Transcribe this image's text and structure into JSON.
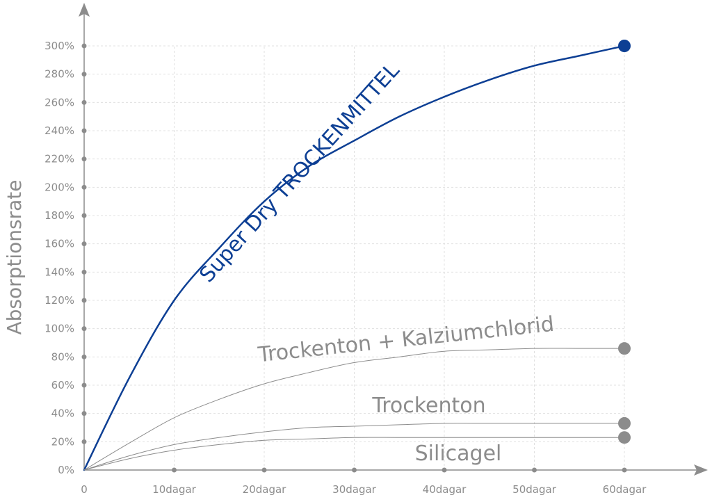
{
  "chart_data": {
    "type": "line",
    "title": "",
    "xlabel": "",
    "ylabel": "Absorptionsrate",
    "x_ticks": [
      "0",
      "10dagar",
      "20dagar",
      "30dagar",
      "40dagar",
      "50dagar",
      "60dagar"
    ],
    "y_ticks": [
      "0%",
      "20%",
      "40%",
      "60%",
      "80%",
      "100%",
      "120%",
      "140%",
      "160%",
      "180%",
      "200%",
      "220%",
      "240%",
      "260%",
      "280%",
      "300%"
    ],
    "xlim": [
      0,
      60
    ],
    "ylim": [
      0,
      300
    ],
    "grid": true,
    "series": [
      {
        "name": "Super Dry TROCKENMITTEL",
        "color": "#0d3f94",
        "emphasis": true,
        "x": [
          0,
          5,
          10,
          15,
          20,
          25,
          30,
          35,
          40,
          45,
          50,
          55,
          60
        ],
        "values": [
          0,
          65,
          120,
          157,
          190,
          215,
          233,
          250,
          264,
          276,
          286,
          293,
          300
        ]
      },
      {
        "name": "Trockenton + Kalziumchlorid",
        "color": "#8c8c8c",
        "emphasis": false,
        "x": [
          0,
          5,
          10,
          15,
          20,
          25,
          30,
          35,
          40,
          45,
          50,
          55,
          60
        ],
        "values": [
          0,
          19,
          37,
          50,
          61,
          69,
          76,
          80,
          84,
          85,
          86,
          86,
          86
        ]
      },
      {
        "name": "Trockenton",
        "color": "#8c8c8c",
        "emphasis": false,
        "x": [
          0,
          5,
          10,
          15,
          20,
          25,
          30,
          35,
          40,
          45,
          50,
          55,
          60
        ],
        "values": [
          0,
          10,
          18,
          23,
          27,
          30,
          31,
          32,
          33,
          33,
          33,
          33,
          33
        ]
      },
      {
        "name": "Silicagel",
        "color": "#8c8c8c",
        "emphasis": false,
        "x": [
          0,
          5,
          10,
          15,
          20,
          25,
          30,
          35,
          40,
          45,
          50,
          55,
          60
        ],
        "values": [
          0,
          8,
          14,
          18,
          21,
          22,
          23,
          23,
          23,
          23,
          23,
          23,
          23
        ]
      }
    ]
  }
}
